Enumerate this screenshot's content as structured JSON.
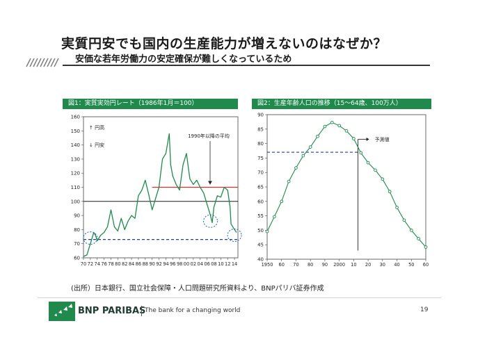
{
  "slide": {
    "title": "実質円安でも国内の生産能力が増えないのはなぜか？",
    "subtitle": "安価な若年労働力の安定確保が難しくなっているため",
    "source": "(出所）日本銀行、国立社会保障・人口問題研究所資料より、BNPパリバ証券作成",
    "brand": "BNP PARIBAS",
    "tagline": "The bank for a changing world",
    "page_number": "19"
  },
  "colors": {
    "green": "#1f8a4c",
    "red": "#d8312a",
    "navy": "#1f3f8f",
    "dark": "#1a1a1a"
  },
  "chart_data": [
    {
      "type": "line",
      "title": "図1：実質実効円レート（1986年1月＝100）",
      "x_tick_labels": [
        "70",
        "72",
        "74",
        "76",
        "78",
        "80",
        "82",
        "84",
        "86",
        "88",
        "90",
        "92",
        "94",
        "96",
        "98",
        "00",
        "02",
        "04",
        "06",
        "08",
        "10",
        "12",
        "14"
      ],
      "xlim": [
        1970,
        2015
      ],
      "ylim": [
        60,
        160
      ],
      "y_ticks": [
        60,
        70,
        80,
        90,
        100,
        110,
        120,
        130,
        140,
        150,
        160
      ],
      "legend": [
        "↑ 円高",
        "↓ 円安"
      ],
      "annotation": "1990年以降の平均",
      "reference_lines": [
        {
          "name": "基準100",
          "value": 100,
          "from": 1970,
          "to": 2015,
          "style": "solid-dark"
        },
        {
          "name": "1990年以降の平均",
          "value": 110,
          "from": 1990,
          "to": 2015,
          "style": "solid-red"
        },
        {
          "name": "low-level",
          "value": 73,
          "from": 1970,
          "to": 2015,
          "style": "dashed-navy"
        }
      ],
      "highlights": [
        {
          "x": 1972,
          "y": 74
        },
        {
          "x": 2007,
          "y": 86
        },
        {
          "x": 2014,
          "y": 76
        }
      ],
      "series": [
        {
          "name": "実質実効円レート",
          "points": [
            [
              1970,
              61
            ],
            [
              1971,
              62
            ],
            [
              1972,
              70
            ],
            [
              1973,
              78
            ],
            [
              1973.5,
              76
            ],
            [
              1974,
              72
            ],
            [
              1975,
              76
            ],
            [
              1976,
              78
            ],
            [
              1977,
              82
            ],
            [
              1978,
              94
            ],
            [
              1979,
              82
            ],
            [
              1980,
              79
            ],
            [
              1981,
              88
            ],
            [
              1982,
              80
            ],
            [
              1983,
              86
            ],
            [
              1984,
              90
            ],
            [
              1985,
              88
            ],
            [
              1986,
              104
            ],
            [
              1987,
              108
            ],
            [
              1988,
              115
            ],
            [
              1989,
              105
            ],
            [
              1990,
              94
            ],
            [
              1991,
              102
            ],
            [
              1992,
              110
            ],
            [
              1993,
              130
            ],
            [
              1994,
              134
            ],
            [
              1995,
              148
            ],
            [
              1995.4,
              126
            ],
            [
              1996,
              118
            ],
            [
              1997,
              112
            ],
            [
              1998,
              108
            ],
            [
              1999,
              126
            ],
            [
              2000,
              134
            ],
            [
              2001,
              116
            ],
            [
              2002,
              112
            ],
            [
              2003,
              115
            ],
            [
              2004,
              110
            ],
            [
              2005,
              106
            ],
            [
              2006,
              98
            ],
            [
              2007,
              90
            ],
            [
              2007.5,
              85
            ],
            [
              2008,
              96
            ],
            [
              2009,
              104
            ],
            [
              2010,
              103
            ],
            [
              2011,
              110
            ],
            [
              2012,
              108
            ],
            [
              2012.7,
              96
            ],
            [
              2013,
              84
            ],
            [
              2014,
              80
            ],
            [
              2014.6,
              78
            ]
          ]
        }
      ]
    },
    {
      "type": "line",
      "title": "図2：生産年齢人口の推移（15～64歳、100万人）",
      "x_tick_labels": [
        "1950",
        "60",
        "70",
        "80",
        "90",
        "2000",
        "10",
        "20",
        "30",
        "40",
        "50",
        "60"
      ],
      "xlim": [
        1950,
        2060
      ],
      "ylim": [
        40,
        90
      ],
      "y_ticks": [
        40,
        45,
        50,
        55,
        60,
        65,
        70,
        75,
        80,
        85,
        90
      ],
      "annotation": "予測値",
      "forecast_from": 2013,
      "reference_lines": [
        {
          "name": "current-level",
          "value": 77,
          "from": 1950,
          "to": 2013,
          "style": "dashed-navy"
        }
      ],
      "series": [
        {
          "name": "生産年齢人口",
          "points": [
            [
              1950,
              49.6
            ],
            [
              1955,
              54.7
            ],
            [
              1960,
              60.0
            ],
            [
              1965,
              66.9
            ],
            [
              1970,
              71.6
            ],
            [
              1975,
              75.8
            ],
            [
              1980,
              78.8
            ],
            [
              1985,
              82.5
            ],
            [
              1990,
              85.9
            ],
            [
              1995,
              87.3
            ],
            [
              2000,
              86.2
            ],
            [
              2005,
              84.4
            ],
            [
              2010,
              81.7
            ],
            [
              2015,
              76.8
            ],
            [
              2020,
              73.4
            ],
            [
              2025,
              70.8
            ],
            [
              2030,
              67.7
            ],
            [
              2035,
              63.4
            ],
            [
              2040,
              57.9
            ],
            [
              2045,
              53.5
            ],
            [
              2050,
              50.0
            ],
            [
              2055,
              47.1
            ],
            [
              2060,
              44.2
            ]
          ]
        }
      ]
    }
  ]
}
